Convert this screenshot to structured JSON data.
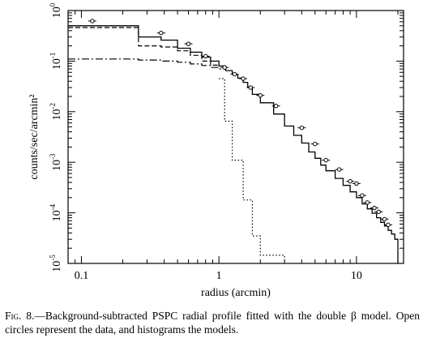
{
  "chart_data": {
    "type": "line",
    "title": "",
    "xlabel": "radius (arcmin)",
    "ylabel": "counts/sec/arcmin²",
    "x_scale": "log",
    "y_scale": "log",
    "xlim": [
      0.08,
      22
    ],
    "ylim": [
      1e-05,
      1
    ],
    "x_ticks": [
      {
        "value": 0.1,
        "label": "0.1"
      },
      {
        "value": 1,
        "label": "1"
      },
      {
        "value": 10,
        "label": "10"
      }
    ],
    "y_ticks": [
      {
        "value": 1e-05,
        "base": "10",
        "exp": "-5"
      },
      {
        "value": 0.0001,
        "base": "10",
        "exp": "-4"
      },
      {
        "value": 0.001,
        "base": "10",
        "exp": "-3"
      },
      {
        "value": 0.01,
        "base": "10",
        "exp": "-2"
      },
      {
        "value": 0.1,
        "base": "10",
        "exp": "-1"
      },
      {
        "value": 1,
        "base": "10",
        "exp": "0"
      }
    ],
    "grid": false,
    "legend": "none",
    "series": [
      {
        "style": "solid",
        "kind": "histogram",
        "edges": [
          0.08,
          0.26,
          0.38,
          0.5,
          0.62,
          0.75,
          0.87,
          1.0,
          1.12,
          1.25,
          1.37,
          1.5,
          1.62,
          1.75,
          2.0,
          2.5,
          3.0,
          3.5,
          4.0,
          4.5,
          5.0,
          5.5,
          6.0,
          7.0,
          8.0,
          9.0,
          10.0,
          11.0,
          12.0,
          13.0,
          14.0,
          15.0,
          16.0,
          17.0,
          18.0,
          19.0,
          20.0
        ],
        "values": [
          0.5,
          0.3,
          0.26,
          0.18,
          0.15,
          0.12,
          0.1,
          0.08,
          0.065,
          0.055,
          0.046,
          0.038,
          0.031,
          0.022,
          0.015,
          0.009,
          0.0052,
          0.0034,
          0.0024,
          0.0016,
          0.0012,
          0.00088,
          0.00068,
          0.00048,
          0.00035,
          0.00026,
          0.0002,
          0.00015,
          0.00012,
          9.8e-05,
          8e-05,
          6.5e-05,
          5.5e-05,
          4.5e-05,
          3.8e-05,
          3e-05
        ]
      },
      {
        "style": "dashed",
        "kind": "histogram",
        "edges": [
          0.08,
          0.26,
          0.38,
          0.5,
          0.62,
          0.75,
          0.87,
          1.0
        ],
        "values": [
          0.46,
          0.2,
          0.19,
          0.16,
          0.13,
          0.1,
          0.083
        ]
      },
      {
        "style": "dot-dash",
        "kind": "histogram",
        "edges": [
          0.08,
          0.26,
          0.38,
          0.5,
          0.62,
          0.75,
          0.87,
          1.0,
          1.12
        ],
        "values": [
          0.11,
          0.105,
          0.1,
          0.095,
          0.088,
          0.082,
          0.075,
          0.07
        ]
      },
      {
        "style": "dotted",
        "kind": "histogram",
        "edges": [
          1.0,
          1.1,
          1.25,
          1.5,
          1.75,
          2.0,
          3.0
        ],
        "values": [
          0.045,
          0.0065,
          0.0011,
          0.00018,
          3.5e-05,
          1.45e-05
        ]
      },
      {
        "style": "points",
        "kind": "scatter",
        "x": [
          0.12,
          0.38,
          0.6,
          0.8,
          1.1,
          1.3,
          1.5,
          1.7,
          2.0,
          2.6,
          4.0,
          5.0,
          6.0,
          7.5,
          9.0,
          10.0,
          11.0,
          12.0,
          13.5,
          14.5,
          16.0,
          17.0
        ],
        "y": [
          0.62,
          0.36,
          0.22,
          0.125,
          0.075,
          0.055,
          0.045,
          0.03,
          0.021,
          0.013,
          0.0048,
          0.0023,
          0.0011,
          0.00072,
          0.00042,
          0.00038,
          0.00022,
          0.00016,
          0.000125,
          0.000105,
          7.5e-05,
          5.8e-05
        ]
      }
    ]
  },
  "caption": {
    "label": "Fig. 8.",
    "text": "—Background-subtracted PSPC radial profile fitted with the double β model. Open circles represent the data, and histograms the models."
  }
}
